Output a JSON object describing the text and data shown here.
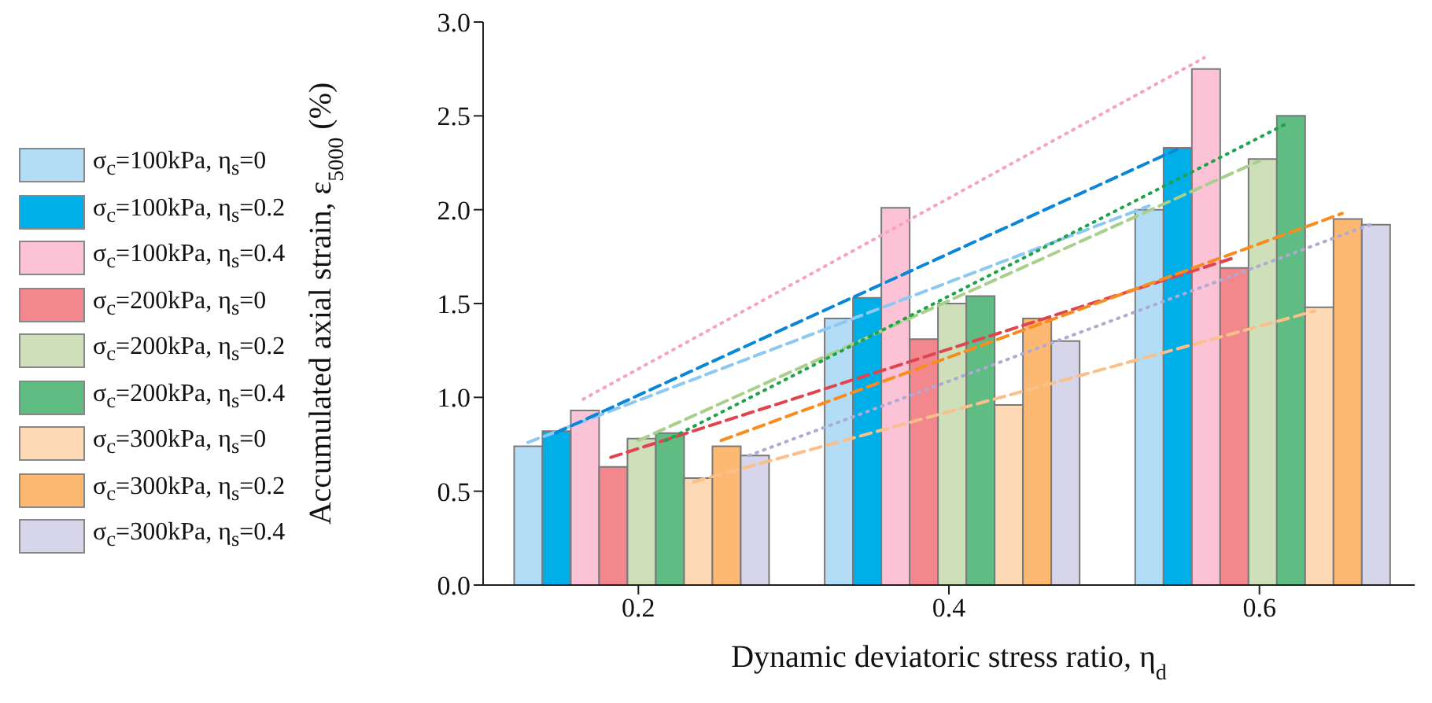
{
  "chart_data": {
    "type": "bar",
    "xlabel": "Dynamic deviatoric stress ratio, η$_{d}$",
    "ylabel": "Accumulated axial strain, ε$_{5000}$ (%)",
    "categories": [
      "0.2",
      "0.4",
      "0.6"
    ],
    "ylim": [
      0,
      3
    ],
    "yticks": [
      {
        "value": 0,
        "label": "0.0"
      },
      0.5,
      {
        "value": 1,
        "label": "1.0"
      },
      1.5,
      {
        "value": 2,
        "label": "2.0"
      },
      2.5,
      {
        "value": 3,
        "label": "3.0"
      }
    ],
    "grid": false,
    "legend": "left",
    "series": [
      {
        "name": "σ$_{c}$=100kPa, η$_{s}$=0",
        "color": "#b3dcf7",
        "values": [
          0.74,
          1.42,
          2.0
        ]
      },
      {
        "name": "σ$_{c}$=100kPa, η$_{s}$=0.2",
        "color": "#00aee8",
        "values": [
          0.82,
          1.53,
          2.33
        ]
      },
      {
        "name": "σ$_{c}$=100kPa, η$_{s}$=0.4",
        "color": "#fcc2d6",
        "values": [
          0.93,
          2.01,
          2.75
        ]
      },
      {
        "name": "σ$_{c}$=200kPa, η$_{s}$=0",
        "color": "#f2878d",
        "values": [
          0.63,
          1.31,
          1.69
        ]
      },
      {
        "name": "σ$_{c}$=200kPa, η$_{s}$=0.2",
        "color": "#cde0b9",
        "values": [
          0.78,
          1.5,
          2.27
        ]
      },
      {
        "name": "σ$_{c}$=200kPa, η$_{s}$=0.4",
        "color": "#5fbd84",
        "values": [
          0.81,
          1.54,
          2.5
        ]
      },
      {
        "name": "σ$_{c}$=300kPa, η$_{s}$=0",
        "color": "#fdd9b5",
        "values": [
          0.57,
          0.96,
          1.48
        ]
      },
      {
        "name": "σ$_{c}$=300kPa, η$_{s}$=0.2",
        "color": "#fdb871",
        "values": [
          0.74,
          1.42,
          1.95
        ]
      },
      {
        "name": "σ$_{c}$=300kPa, η$_{s}$=0.4",
        "color": "#d7d5ea",
        "values": [
          0.69,
          1.3,
          1.92
        ]
      },
      {
        "type": "line",
        "color": "#8cc8f2",
        "line_style": "dashed",
        "x": [
          "0.2",
          "0.6"
        ],
        "values": [
          0.76,
          2.02
        ]
      },
      {
        "type": "line",
        "color": "#0a86d8",
        "line_style": "dashed",
        "x": [
          "0.2",
          "0.6"
        ],
        "values": [
          0.81,
          2.32
        ]
      },
      {
        "type": "line",
        "color": "#f7a3bf",
        "line_style": "dotted",
        "x": [
          "0.2",
          "0.6"
        ],
        "values": [
          0.99,
          2.81
        ]
      },
      {
        "type": "line",
        "color": "#e0444f",
        "line_style": "dashed",
        "x": [
          "0.2",
          "0.6"
        ],
        "values": [
          0.68,
          1.74
        ]
      },
      {
        "type": "line",
        "color": "#a9cf8a",
        "line_style": "dashed",
        "x": [
          "0.2",
          "0.6"
        ],
        "values": [
          0.77,
          2.26
        ]
      },
      {
        "type": "line",
        "color": "#1fa34a",
        "line_style": "dotted",
        "x": [
          "0.2",
          "0.6"
        ],
        "values": [
          0.77,
          2.46
        ]
      },
      {
        "type": "line",
        "color": "#fbbf8a",
        "line_style": "dashed",
        "x": [
          "0.2",
          "0.6"
        ],
        "values": [
          0.55,
          1.46
        ]
      },
      {
        "type": "line",
        "color": "#f98c1e",
        "line_style": "dashed",
        "x": [
          "0.2",
          "0.6"
        ],
        "values": [
          0.77,
          1.98
        ]
      },
      {
        "type": "line",
        "color": "#aeaad4",
        "line_style": "dotted",
        "x": [
          "0.2",
          "0.6"
        ],
        "values": [
          0.69,
          1.92
        ]
      }
    ]
  }
}
